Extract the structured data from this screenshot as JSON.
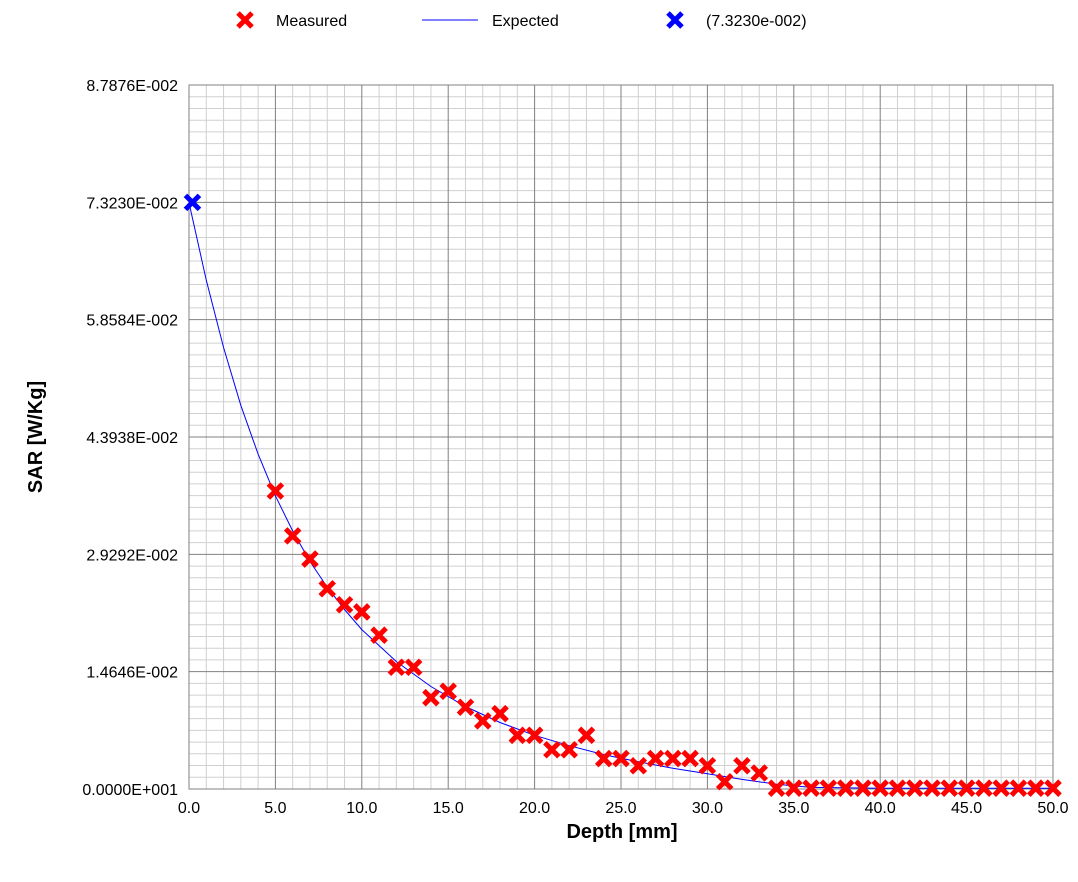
{
  "chart_data": {
    "type": "scatter",
    "title": "",
    "xlabel": "Depth [mm]",
    "ylabel": "SAR [W/Kg]",
    "xlim": [
      0,
      50
    ],
    "ylim": [
      0,
      0.087876
    ],
    "grid": true,
    "minor_grid": true,
    "legend_position": "top",
    "x_tick_labels": [
      "0.0",
      "5.0",
      "10.0",
      "15.0",
      "20.0",
      "25.0",
      "30.0",
      "35.0",
      "40.0",
      "45.0",
      "50.0"
    ],
    "y_tick_labels": [
      "0.0000E+001",
      "1.4646E-002",
      "2.9292E-002",
      "4.3938E-002",
      "5.8584E-002",
      "7.3230E-002",
      "8.7876E-002"
    ],
    "series": [
      {
        "name": "Measured",
        "kind": "scatter",
        "marker": "x",
        "color": "#ff0000",
        "points": [
          [
            5.0,
            0.0372
          ],
          [
            6.0,
            0.0316
          ],
          [
            7.0,
            0.0287
          ],
          [
            8.0,
            0.025
          ],
          [
            9.0,
            0.023
          ],
          [
            10.0,
            0.0221
          ],
          [
            11.0,
            0.0192
          ],
          [
            12.0,
            0.0152
          ],
          [
            13.0,
            0.0152
          ],
          [
            14.0,
            0.0114
          ],
          [
            15.0,
            0.0122
          ],
          [
            16.0,
            0.0102
          ],
          [
            17.0,
            0.0085
          ],
          [
            18.0,
            0.0094
          ],
          [
            19.0,
            0.0067
          ],
          [
            20.0,
            0.0067
          ],
          [
            21.0,
            0.0049
          ],
          [
            22.0,
            0.0049
          ],
          [
            23.0,
            0.0067
          ],
          [
            24.0,
            0.0038
          ],
          [
            25.0,
            0.0038
          ],
          [
            26.0,
            0.0029
          ],
          [
            27.0,
            0.0038
          ],
          [
            28.0,
            0.0038
          ],
          [
            29.0,
            0.0038
          ],
          [
            30.0,
            0.0029
          ],
          [
            31.0,
            0.0009
          ],
          [
            32.0,
            0.0029
          ],
          [
            33.0,
            0.002
          ],
          [
            34.0,
            0.0001
          ],
          [
            35.0,
            0.0001
          ],
          [
            36.0,
            0.0001
          ],
          [
            37.0,
            0.0001
          ],
          [
            38.0,
            0.0001
          ],
          [
            39.0,
            0.0001
          ],
          [
            40.0,
            0.0001
          ],
          [
            41.0,
            0.0001
          ],
          [
            42.0,
            0.0001
          ],
          [
            43.0,
            0.0001
          ],
          [
            44.0,
            0.0001
          ],
          [
            45.0,
            0.0001
          ],
          [
            46.0,
            0.0001
          ],
          [
            47.0,
            0.0001
          ],
          [
            48.0,
            0.0001
          ],
          [
            49.0,
            0.0001
          ],
          [
            50.0,
            0.0001
          ]
        ]
      },
      {
        "name": "Expected",
        "kind": "line",
        "color": "#0000ff",
        "points": [
          [
            0.0,
            0.0732
          ],
          [
            1.0,
            0.0635
          ],
          [
            2.0,
            0.0551
          ],
          [
            3.0,
            0.0479
          ],
          [
            4.0,
            0.0418
          ],
          [
            5.0,
            0.0366
          ],
          [
            6.0,
            0.0322
          ],
          [
            7.0,
            0.0284
          ],
          [
            8.0,
            0.0252
          ],
          [
            9.0,
            0.0224
          ],
          [
            10.0,
            0.0199
          ],
          [
            12.0,
            0.0159
          ],
          [
            14.0,
            0.0128
          ],
          [
            16.0,
            0.0103
          ],
          [
            18.0,
            0.0083
          ],
          [
            20.0,
            0.0067
          ],
          [
            22.0,
            0.0054
          ],
          [
            24.0,
            0.0043
          ],
          [
            26.0,
            0.0034
          ],
          [
            28.0,
            0.0026
          ],
          [
            30.0,
            0.0019
          ],
          [
            32.0,
            0.0012
          ],
          [
            34.0,
            0.0006
          ],
          [
            36.0,
            0.0002
          ],
          [
            40.0,
            0.0001
          ],
          [
            45.0,
            0.0001
          ],
          [
            50.0,
            0.0001
          ]
        ]
      },
      {
        "name": "(7.3230e-002)",
        "kind": "scatter",
        "marker": "x",
        "color": "#0000ff",
        "points": [
          [
            0.2,
            0.07323
          ]
        ]
      }
    ]
  }
}
